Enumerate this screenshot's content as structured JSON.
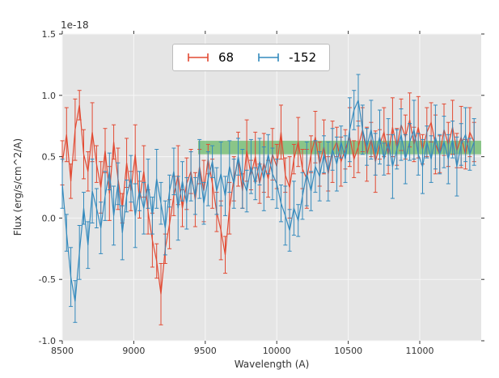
{
  "figure": {
    "bg_color": "#ffffff",
    "axes_bg_color": "#e5e5e5",
    "grid_color": "#f7f7f7",
    "tick_color": "#333333",
    "label_color": "#333333"
  },
  "chart_data": {
    "type": "line",
    "title": "",
    "xlabel": "Wavelength (A)",
    "ylabel": "Flux (erg/s/cm^2/A)",
    "y_offset_label": "1e-18",
    "xlim": [
      8500,
      11430
    ],
    "ylim": [
      -1.0,
      1.5
    ],
    "xticks": [
      8500,
      9000,
      9500,
      10000,
      10500,
      11000
    ],
    "yticks": [
      -1.0,
      -0.5,
      0.0,
      0.5,
      1.0,
      1.5
    ],
    "grid": true,
    "legend_position": "upper center",
    "band": {
      "x0": 9450,
      "x1": 11430,
      "y0": 0.52,
      "y1": 0.63,
      "color": "#4daf4a",
      "opacity": 0.6
    },
    "x": [
      8500,
      8530,
      8560,
      8590,
      8620,
      8650,
      8680,
      8710,
      8740,
      8770,
      8800,
      8830,
      8860,
      8890,
      8920,
      8950,
      8980,
      9010,
      9040,
      9070,
      9100,
      9130,
      9160,
      9190,
      9220,
      9250,
      9280,
      9310,
      9340,
      9370,
      9400,
      9430,
      9460,
      9490,
      9520,
      9550,
      9580,
      9610,
      9640,
      9670,
      9700,
      9730,
      9760,
      9790,
      9820,
      9850,
      9880,
      9910,
      9940,
      9970,
      10000,
      10030,
      10060,
      10090,
      10120,
      10150,
      10180,
      10210,
      10240,
      10270,
      10300,
      10330,
      10360,
      10390,
      10420,
      10450,
      10480,
      10510,
      10540,
      10570,
      10600,
      10630,
      10660,
      10690,
      10720,
      10750,
      10780,
      10810,
      10840,
      10870,
      10900,
      10930,
      10960,
      10990,
      11020,
      11050,
      11080,
      11110,
      11140,
      11170,
      11200,
      11230,
      11260,
      11290,
      11320,
      11350,
      11380
    ],
    "series": [
      {
        "name": "68",
        "color": "#E24A33",
        "y": [
          0.45,
          0.68,
          0.3,
          0.72,
          0.92,
          0.52,
          0.38,
          0.7,
          0.44,
          0.25,
          0.55,
          0.2,
          0.62,
          0.32,
          0.08,
          0.45,
          0.22,
          0.52,
          0.15,
          0.38,
          0.05,
          -0.18,
          -0.35,
          -0.62,
          -0.25,
          -0.05,
          0.18,
          0.35,
          0.08,
          0.28,
          0.38,
          0.15,
          0.42,
          0.22,
          0.48,
          0.28,
          0.05,
          -0.1,
          -0.3,
          0.08,
          0.32,
          0.48,
          0.22,
          0.55,
          0.35,
          0.5,
          0.28,
          0.45,
          0.32,
          0.52,
          0.42,
          0.7,
          0.35,
          0.25,
          0.48,
          0.62,
          0.4,
          0.32,
          0.52,
          0.66,
          0.44,
          0.58,
          0.36,
          0.54,
          0.62,
          0.46,
          0.56,
          0.66,
          0.48,
          0.58,
          0.72,
          0.52,
          0.64,
          0.46,
          0.6,
          0.7,
          0.52,
          0.74,
          0.58,
          0.76,
          0.66,
          0.8,
          0.6,
          0.74,
          0.56,
          0.7,
          0.78,
          0.6,
          0.52,
          0.72,
          0.6,
          0.74,
          0.55,
          0.66,
          0.52,
          0.7,
          0.62
        ],
        "yerr": [
          0.18,
          0.22,
          0.14,
          0.25,
          0.12,
          0.2,
          0.16,
          0.24,
          0.15,
          0.21,
          0.18,
          0.22,
          0.14,
          0.25,
          0.12,
          0.2,
          0.16,
          0.24,
          0.15,
          0.21,
          0.18,
          0.22,
          0.14,
          0.25,
          0.12,
          0.2,
          0.16,
          0.24,
          0.15,
          0.21,
          0.18,
          0.22,
          0.14,
          0.25,
          0.12,
          0.2,
          0.16,
          0.24,
          0.15,
          0.21,
          0.18,
          0.22,
          0.14,
          0.25,
          0.12,
          0.2,
          0.16,
          0.24,
          0.15,
          0.21,
          0.18,
          0.22,
          0.14,
          0.25,
          0.12,
          0.2,
          0.16,
          0.24,
          0.15,
          0.21,
          0.18,
          0.22,
          0.14,
          0.25,
          0.12,
          0.2,
          0.16,
          0.24,
          0.15,
          0.21,
          0.18,
          0.22,
          0.14,
          0.25,
          0.12,
          0.2,
          0.16,
          0.24,
          0.15,
          0.21,
          0.18,
          0.22,
          0.14,
          0.25,
          0.12,
          0.2,
          0.16,
          0.24,
          0.15,
          0.21,
          0.18,
          0.22,
          0.14,
          0.25,
          0.12,
          0.2,
          0.16
        ]
      },
      {
        "name": "-152",
        "color": "#348ABD",
        "y": [
          0.28,
          -0.12,
          -0.48,
          -0.68,
          -0.28,
          0.08,
          -0.22,
          0.22,
          0.08,
          -0.08,
          0.18,
          0.38,
          0.02,
          0.28,
          -0.12,
          0.18,
          0.32,
          0.02,
          0.22,
          0.08,
          0.28,
          0.02,
          0.32,
          0.12,
          -0.08,
          0.22,
          0.38,
          0.08,
          0.3,
          0.12,
          0.34,
          0.18,
          0.4,
          0.12,
          0.32,
          0.46,
          0.22,
          0.36,
          0.18,
          0.42,
          0.28,
          0.5,
          0.32,
          0.22,
          0.42,
          0.28,
          0.46,
          0.32,
          0.52,
          0.36,
          0.28,
          0.12,
          0.02,
          -0.1,
          0.08,
          -0.02,
          0.18,
          0.36,
          0.22,
          0.42,
          0.34,
          0.52,
          0.38,
          0.56,
          0.44,
          0.62,
          0.48,
          0.72,
          0.88,
          0.96,
          0.72,
          0.58,
          0.72,
          0.52,
          0.66,
          0.48,
          0.62,
          0.42,
          0.56,
          0.68,
          0.48,
          0.62,
          0.72,
          0.52,
          0.42,
          0.62,
          0.48,
          0.66,
          0.52,
          0.62,
          0.48,
          0.64,
          0.42,
          0.6,
          0.68,
          0.52,
          0.62
        ],
        "yerr": [
          0.2,
          0.15,
          0.24,
          0.17,
          0.22,
          0.13,
          0.19,
          0.26,
          0.16,
          0.21,
          0.2,
          0.15,
          0.24,
          0.17,
          0.22,
          0.13,
          0.19,
          0.26,
          0.16,
          0.21,
          0.2,
          0.15,
          0.24,
          0.17,
          0.22,
          0.13,
          0.19,
          0.26,
          0.16,
          0.21,
          0.2,
          0.15,
          0.24,
          0.17,
          0.22,
          0.13,
          0.19,
          0.26,
          0.16,
          0.21,
          0.2,
          0.15,
          0.24,
          0.17,
          0.22,
          0.13,
          0.19,
          0.26,
          0.16,
          0.21,
          0.2,
          0.15,
          0.24,
          0.17,
          0.22,
          0.13,
          0.19,
          0.26,
          0.16,
          0.21,
          0.2,
          0.15,
          0.24,
          0.17,
          0.22,
          0.13,
          0.19,
          0.26,
          0.16,
          0.21,
          0.2,
          0.15,
          0.24,
          0.17,
          0.22,
          0.13,
          0.19,
          0.26,
          0.16,
          0.21,
          0.2,
          0.15,
          0.24,
          0.17,
          0.22,
          0.13,
          0.19,
          0.26,
          0.16,
          0.21,
          0.2,
          0.15,
          0.24,
          0.17,
          0.22,
          0.13,
          0.19
        ]
      }
    ]
  }
}
